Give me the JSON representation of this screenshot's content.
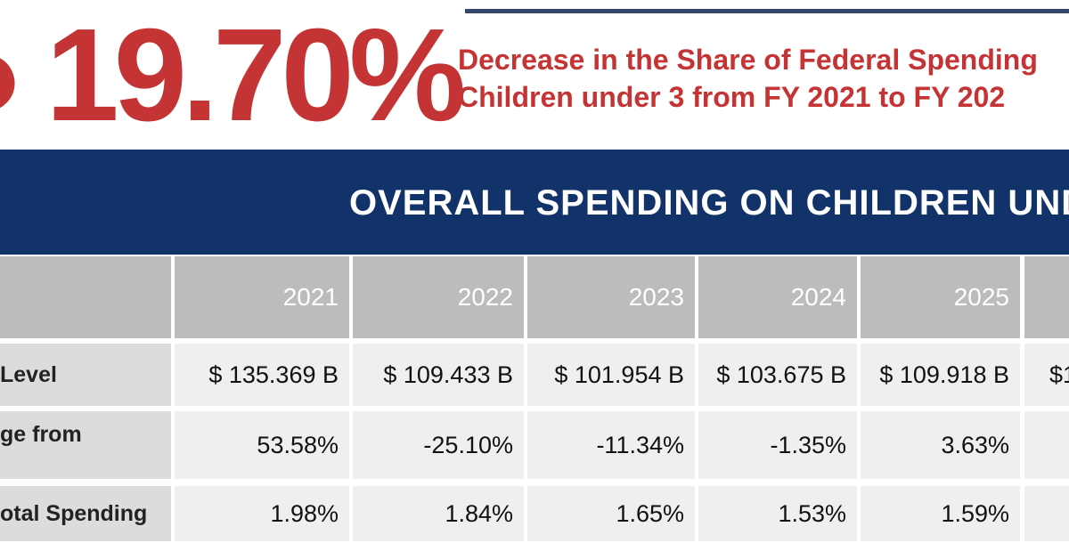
{
  "headline": {
    "value": "19.70%",
    "subtitle_line1": "Decrease in the Share of Federal Spending",
    "subtitle_line2": "Children under 3 from FY 2021 to FY 202"
  },
  "banner": {
    "title": "OVERALL SPENDING ON CHILDREN UND"
  },
  "table": {
    "years": [
      "2021",
      "2022",
      "2023",
      "2024",
      "2025",
      ""
    ],
    "rows": [
      {
        "label": "Level",
        "values": [
          "$ 135.369 B",
          "$ 109.433 B",
          "$ 101.954 B",
          "$ 103.675 B",
          "$ 109.918 B",
          "$1"
        ]
      },
      {
        "label": "ge from",
        "values": [
          "53.58%",
          "-25.10%",
          "-11.34%",
          "-1.35%",
          "3.63%",
          ""
        ]
      },
      {
        "label": "otal Spending",
        "values": [
          "1.98%",
          "1.84%",
          "1.65%",
          "1.53%",
          "1.59%",
          ""
        ]
      }
    ]
  },
  "colors": {
    "accent_red": "#c43434",
    "banner_blue": "#12326a",
    "header_gray": "#bcbcbe"
  }
}
